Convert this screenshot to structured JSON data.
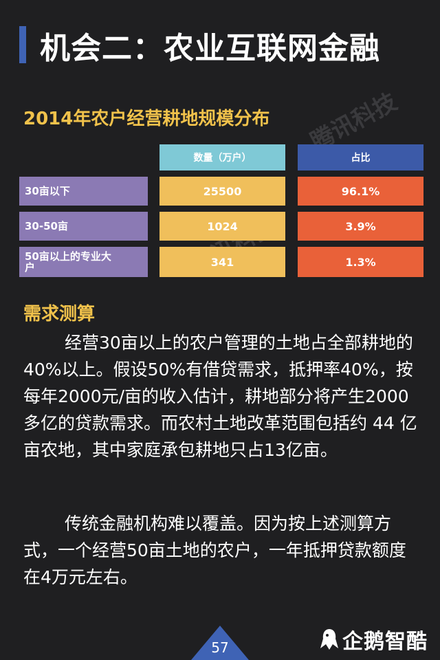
{
  "title": "机会二：农业互联网金融",
  "subtitle": "2014年农户经营耕地规模分布",
  "watermark": "腾讯科技",
  "table": {
    "headers": [
      "数量（万户）",
      "占比"
    ],
    "rows": [
      {
        "label": "30亩以下",
        "qty": "25500",
        "pct": "96.1%"
      },
      {
        "label": "30-50亩",
        "qty": "1024",
        "pct": "3.9%"
      },
      {
        "label": "50亩以上的专业大户",
        "qty": "341",
        "pct": "1.3%"
      }
    ]
  },
  "section_heading": "需求测算",
  "paragraphs": [
    "经营30亩以上的农户管理的土地占全部耕地的40%以上。假设50%有借贷需求，抵押率40%，按每年2000元/亩的收入估计，耕地部分将产生2000多亿的贷款需求。而农村土地改革范围包括约 44 亿亩农地，其中家庭承包耕地只占13亿亩。",
    "传统金融机构难以覆盖。因为按上述测算方式，一个经营50亩土地的农户，一年抵押贷款额度在4万元左右。"
  ],
  "page_number": "57",
  "brand": "企鹅智酷",
  "colors": {
    "background": "#1f1f21",
    "accent_blue": "#3f63b5",
    "heading_yellow": "#f1c24b",
    "label_purple": "#8b7ab4",
    "qty_orange": "#f0bf5b",
    "pct_red": "#e96139",
    "header_cyan": "#7fc9d6"
  }
}
